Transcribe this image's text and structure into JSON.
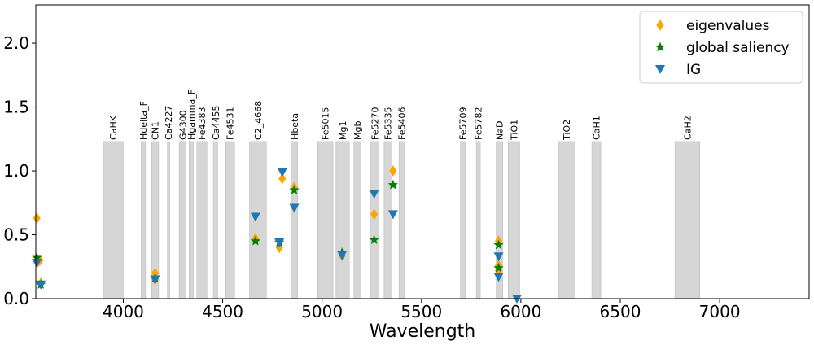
{
  "chart_data": {
    "type": "scatter",
    "title": "",
    "xlabel": "Wavelength",
    "ylabel": "",
    "xlim": [
      3560,
      7450
    ],
    "ylim": [
      0,
      2.3
    ],
    "grid": false,
    "legend_position": "top-right",
    "x_ticks": [
      4000,
      4500,
      5000,
      5500,
      6000,
      6500,
      7000
    ],
    "x_tick_labels": [
      "4000",
      "4500",
      "5000",
      "5500",
      "6000",
      "6500",
      "7000"
    ],
    "y_ticks": [
      0.0,
      0.5,
      1.0,
      1.5,
      2.0
    ],
    "y_tick_labels": [
      "0.0",
      "0.5",
      "1.0",
      "1.5",
      "2.0"
    ],
    "band_height": 1.23,
    "bands": [
      {
        "label": "CaHK",
        "start": 3900,
        "end": 4000
      },
      {
        "label": "Hdelta_F",
        "start": 4090,
        "end": 4112
      },
      {
        "label": "CN1",
        "start": 4143,
        "end": 4178
      },
      {
        "label": "Ca4227",
        "start": 4222,
        "end": 4234
      },
      {
        "label": "G4300",
        "start": 4281,
        "end": 4316
      },
      {
        "label": "Hgamma_F",
        "start": 4331,
        "end": 4353
      },
      {
        "label": "Fe4383",
        "start": 4370,
        "end": 4421
      },
      {
        "label": "Ca4455",
        "start": 4453,
        "end": 4475
      },
      {
        "label": "Fe4531",
        "start": 4515,
        "end": 4560
      },
      {
        "label": "C2_4668",
        "start": 4635,
        "end": 4720
      },
      {
        "label": "Hbeta",
        "start": 4848,
        "end": 4877
      },
      {
        "label": "Fe5015",
        "start": 4978,
        "end": 5055
      },
      {
        "label": "Mg1",
        "start": 5070,
        "end": 5137
      },
      {
        "label": "Mgb",
        "start": 5160,
        "end": 5196
      },
      {
        "label": "Fe5270",
        "start": 5245,
        "end": 5285
      },
      {
        "label": "Fe5335",
        "start": 5312,
        "end": 5352
      },
      {
        "label": "Fe5406",
        "start": 5387,
        "end": 5415
      },
      {
        "label": "Fe5709",
        "start": 5696,
        "end": 5720
      },
      {
        "label": "Fe5782",
        "start": 5776,
        "end": 5796
      },
      {
        "label": "NaD",
        "start": 5876,
        "end": 5909
      },
      {
        "label": "TiO1",
        "start": 5936,
        "end": 5994
      },
      {
        "label": "TiO2",
        "start": 6189,
        "end": 6272
      },
      {
        "label": "CaH1",
        "start": 6357,
        "end": 6402
      },
      {
        "label": "CaH2",
        "start": 6775,
        "end": 6900
      }
    ],
    "series": [
      {
        "name": "eigenvalues",
        "color": "#FFA500",
        "marker": "thin_diamond",
        "points": [
          [
            3565,
            0.63
          ],
          [
            3572,
            0.29
          ],
          [
            3580,
            0.3
          ],
          [
            3585,
            0.12
          ],
          [
            4160,
            0.2
          ],
          [
            4160,
            0.15
          ],
          [
            4665,
            0.47
          ],
          [
            4785,
            0.4
          ],
          [
            4800,
            0.94
          ],
          [
            4860,
            0.87
          ],
          [
            5100,
            0.34
          ],
          [
            5262,
            0.66
          ],
          [
            5357,
            1.0
          ],
          [
            5888,
            0.45
          ],
          [
            5888,
            0.26
          ],
          [
            5888,
            0.22
          ]
        ]
      },
      {
        "name": "global saliency",
        "color": "#008000",
        "marker": "star",
        "points": [
          [
            3565,
            0.32
          ],
          [
            3585,
            0.11
          ],
          [
            4160,
            0.16
          ],
          [
            4665,
            0.45
          ],
          [
            4785,
            0.44
          ],
          [
            4860,
            0.85
          ],
          [
            5100,
            0.36
          ],
          [
            5262,
            0.46
          ],
          [
            5357,
            0.89
          ],
          [
            5888,
            0.42
          ],
          [
            5888,
            0.24
          ]
        ]
      },
      {
        "name": "IG",
        "color": "#1F77B4",
        "marker": "triangle_down",
        "points": [
          [
            3565,
            0.28
          ],
          [
            3585,
            0.11
          ],
          [
            4160,
            0.15
          ],
          [
            4665,
            0.64
          ],
          [
            4785,
            0.44
          ],
          [
            4800,
            0.99
          ],
          [
            4860,
            0.71
          ],
          [
            5100,
            0.34
          ],
          [
            5262,
            0.82
          ],
          [
            5357,
            0.66
          ],
          [
            5888,
            0.33
          ],
          [
            5888,
            0.17
          ],
          [
            5980,
            0.0
          ]
        ]
      }
    ]
  }
}
